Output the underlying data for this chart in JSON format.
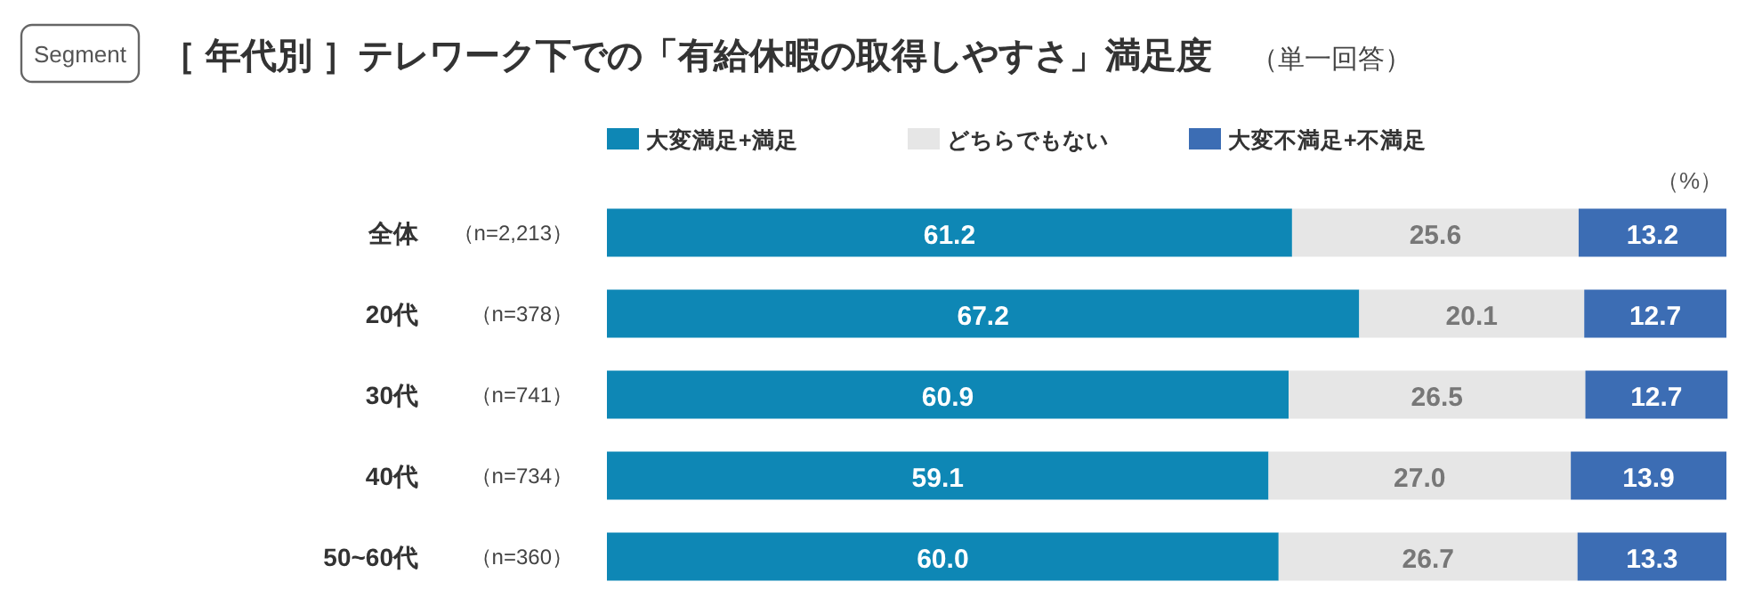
{
  "chart_data": {
    "type": "bar",
    "orientation": "horizontal",
    "stacked": true,
    "title": "［ 年代別 ］テレワーク下での「有給休暇の取得しやすさ」満足度",
    "subtitle": "（単一回答）",
    "categories": [
      "全体",
      "20代",
      "30代",
      "40代",
      "50~60代"
    ],
    "y2_categories": [
      "（n=2,213）",
      "（n=378）",
      "（n=741）",
      "（n=734）",
      "（n=360）"
    ],
    "series": [
      {
        "name": "大変満足+満足",
        "color": "#0e87b5",
        "values": [
          61.2,
          67.2,
          60.9,
          59.1,
          60.0
        ],
        "value_labels": [
          "61.2",
          "67.2",
          "60.9",
          "59.1",
          "60.0"
        ]
      },
      {
        "name": "どちらでもない",
        "color": "#e6e6e6",
        "values": [
          25.6,
          20.1,
          26.5,
          27.0,
          26.7
        ],
        "value_labels": [
          "25.6",
          "20.1",
          "26.5",
          "27.0",
          "26.7"
        ]
      },
      {
        "name": "大変不満足+不満足",
        "color": "#3c6db4",
        "values": [
          13.2,
          12.7,
          12.7,
          13.9,
          13.3
        ],
        "value_labels": [
          "13.2",
          "12.7",
          "12.7",
          "13.9",
          "13.3"
        ]
      }
    ],
    "xlim": [
      0,
      100
    ],
    "legend": "top",
    "annotations": [
      "Segment",
      "（%）"
    ]
  }
}
